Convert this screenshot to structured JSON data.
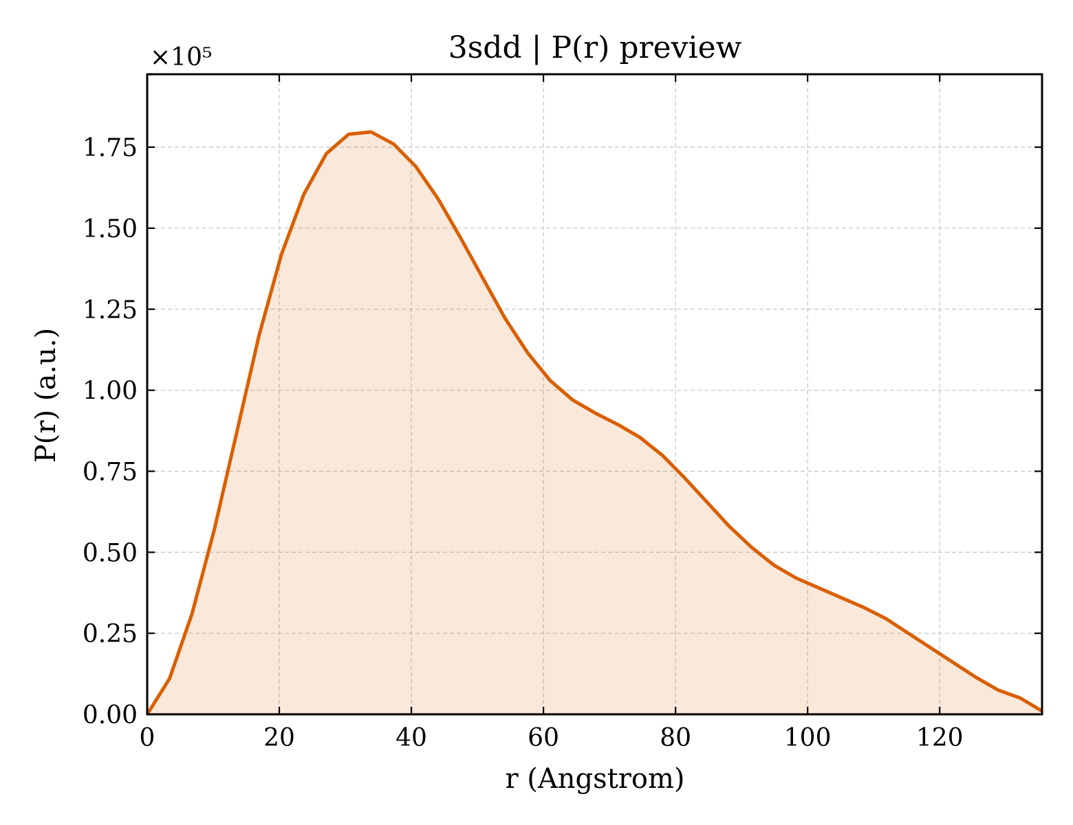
{
  "chart_data": {
    "type": "area",
    "title": "3sdd | P(r) preview",
    "xlabel": "r (Angstrom)",
    "ylabel": "P(r) (a.u.)",
    "y_multiplier_label": "×10⁵",
    "y_scale_factor": 100000,
    "xlim": [
      0,
      135.5
    ],
    "ylim": [
      0,
      197500
    ],
    "xticks": [
      0,
      20,
      40,
      60,
      80,
      100,
      120
    ],
    "xtick_labels": [
      "0",
      "20",
      "40",
      "60",
      "80",
      "100",
      "120"
    ],
    "yticks": [
      0,
      25000,
      50000,
      75000,
      100000,
      125000,
      150000,
      175000
    ],
    "ytick_labels": [
      "0.00",
      "0.25",
      "0.50",
      "0.75",
      "1.00",
      "1.25",
      "1.50",
      "1.75"
    ],
    "grid": true,
    "colors": {
      "line": "#d95f02",
      "fill": "#d95f02",
      "fill_opacity": 0.14
    },
    "series": [
      {
        "x": [
          0,
          3.39,
          6.78,
          10.17,
          13.56,
          16.95,
          20.34,
          23.73,
          27.12,
          30.51,
          33.9,
          37.29,
          40.68,
          44.07,
          47.46,
          50.85,
          54.24,
          57.63,
          61.02,
          64.41,
          67.8,
          71.19,
          74.58,
          77.97,
          81.36,
          84.75,
          88.14,
          91.53,
          94.92,
          98.31,
          101.7,
          105.09,
          108.48,
          111.87,
          115.26,
          118.65,
          122.04,
          125.43,
          128.82,
          132.21,
          135.5
        ],
        "y": [
          0,
          11000,
          31000,
          57000,
          87000,
          117000,
          142000,
          160500,
          173000,
          179000,
          179700,
          176000,
          169000,
          159000,
          147000,
          134500,
          122000,
          111500,
          103000,
          97000,
          93000,
          89500,
          85500,
          80000,
          73000,
          65500,
          58000,
          51500,
          46000,
          42000,
          39000,
          36000,
          33000,
          29500,
          25000,
          20500,
          16000,
          11500,
          7500,
          5000,
          1000
        ]
      }
    ]
  }
}
